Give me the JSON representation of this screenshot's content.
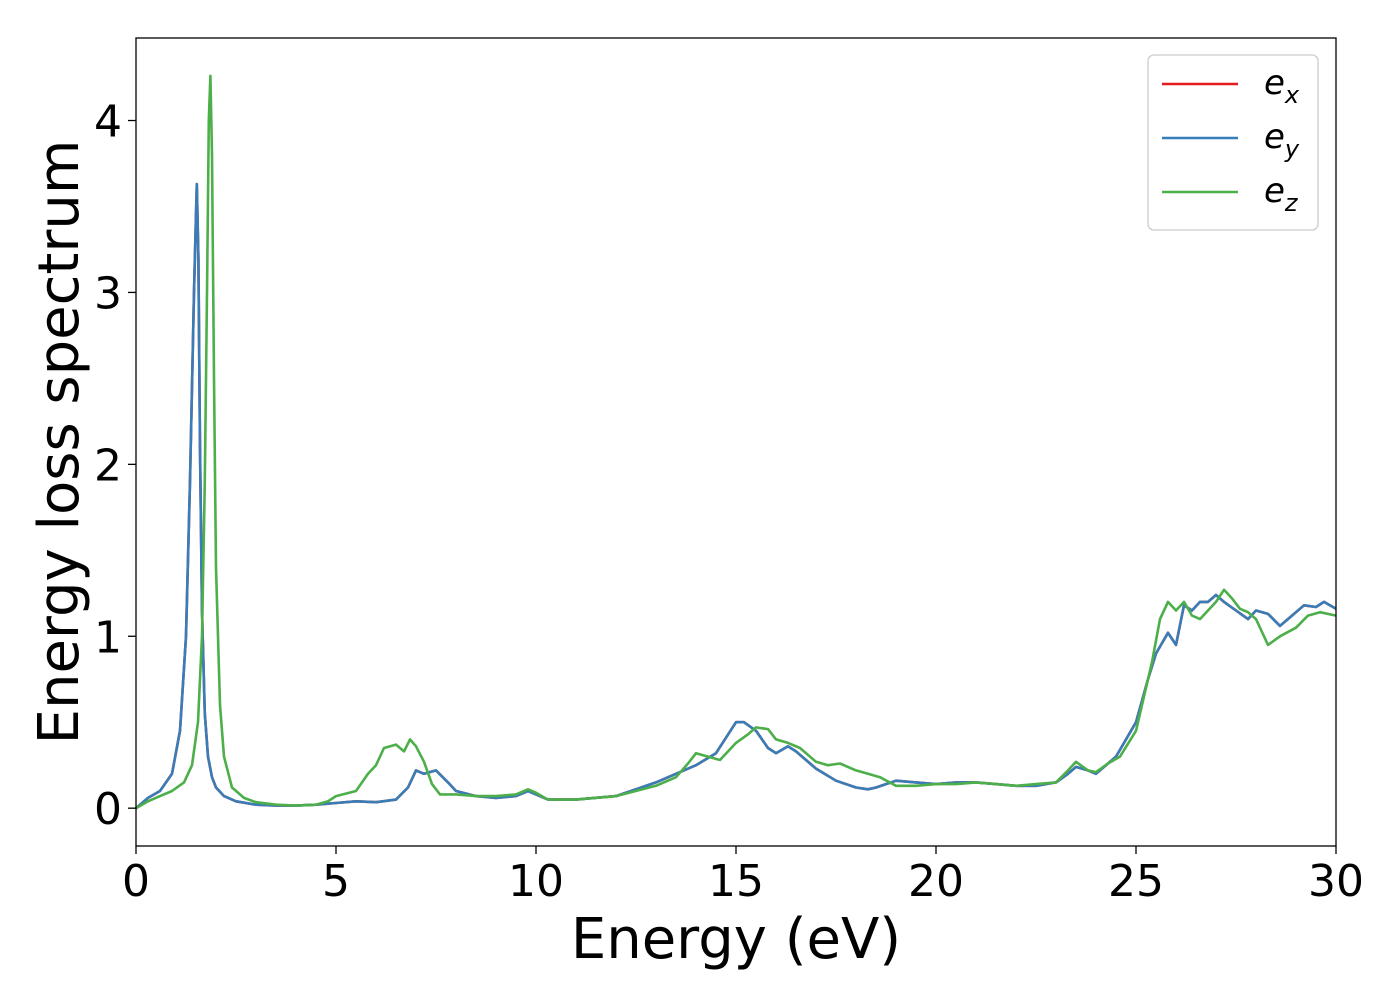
{
  "chart_data": {
    "type": "line",
    "xlabel": "Energy (eV)",
    "ylabel": "Energy loss spectrum",
    "xlim": [
      0,
      30
    ],
    "ylim": [
      -0.22,
      4.48
    ],
    "xticks": [
      0,
      5,
      10,
      15,
      20,
      25,
      30
    ],
    "yticks": [
      0,
      1,
      2,
      3,
      4
    ],
    "grid": false,
    "legend_position": "top-right",
    "series": [
      {
        "name": "e_x",
        "legend_base": "e",
        "legend_sub": "x",
        "color": "#e41a1c",
        "x": [
          0,
          0.3,
          0.6,
          0.9,
          1.1,
          1.25,
          1.35,
          1.45,
          1.52,
          1.56,
          1.6,
          1.65,
          1.72,
          1.8,
          1.9,
          2.0,
          2.2,
          2.5,
          3.0,
          3.5,
          4.0,
          4.5,
          5.0,
          5.5,
          6.0,
          6.5,
          6.8,
          7.0,
          7.2,
          7.5,
          7.8,
          8.0,
          8.5,
          9.0,
          9.5,
          9.8,
          10.0,
          10.3,
          11.0,
          12.0,
          13.0,
          13.5,
          14.0,
          14.5,
          15.0,
          15.2,
          15.5,
          15.8,
          16.0,
          16.3,
          16.5,
          17.0,
          17.5,
          18.0,
          18.3,
          18.5,
          19.0,
          19.5,
          20.0,
          20.5,
          21.0,
          21.5,
          22.0,
          22.5,
          23.0,
          23.3,
          23.5,
          23.8,
          24.0,
          24.3,
          24.5,
          24.8,
          25.0,
          25.3,
          25.5,
          25.8,
          26.0,
          26.2,
          26.4,
          26.6,
          26.8,
          27.0,
          27.2,
          27.5,
          27.8,
          28.0,
          28.3,
          28.6,
          28.9,
          29.2,
          29.5,
          29.7,
          30.0
        ],
        "values": [
          0.0,
          0.06,
          0.1,
          0.2,
          0.45,
          1.0,
          1.9,
          3.0,
          3.63,
          3.2,
          2.1,
          1.15,
          0.55,
          0.3,
          0.18,
          0.12,
          0.07,
          0.04,
          0.02,
          0.015,
          0.015,
          0.02,
          0.03,
          0.04,
          0.035,
          0.05,
          0.12,
          0.22,
          0.2,
          0.22,
          0.15,
          0.1,
          0.07,
          0.06,
          0.07,
          0.1,
          0.08,
          0.05,
          0.05,
          0.07,
          0.15,
          0.2,
          0.25,
          0.32,
          0.5,
          0.5,
          0.45,
          0.35,
          0.32,
          0.36,
          0.33,
          0.23,
          0.16,
          0.12,
          0.11,
          0.12,
          0.16,
          0.15,
          0.14,
          0.15,
          0.15,
          0.14,
          0.13,
          0.13,
          0.15,
          0.2,
          0.24,
          0.22,
          0.2,
          0.26,
          0.3,
          0.42,
          0.5,
          0.75,
          0.9,
          1.02,
          0.95,
          1.18,
          1.15,
          1.2,
          1.2,
          1.24,
          1.2,
          1.15,
          1.1,
          1.15,
          1.13,
          1.06,
          1.12,
          1.18,
          1.17,
          1.2,
          1.16
        ]
      },
      {
        "name": "e_y",
        "legend_base": "e",
        "legend_sub": "y",
        "color": "#377eb8",
        "x": [
          0,
          0.3,
          0.6,
          0.9,
          1.1,
          1.25,
          1.35,
          1.45,
          1.52,
          1.56,
          1.6,
          1.65,
          1.72,
          1.8,
          1.9,
          2.0,
          2.2,
          2.5,
          3.0,
          3.5,
          4.0,
          4.5,
          5.0,
          5.5,
          6.0,
          6.5,
          6.8,
          7.0,
          7.2,
          7.5,
          7.8,
          8.0,
          8.5,
          9.0,
          9.5,
          9.8,
          10.0,
          10.3,
          11.0,
          12.0,
          13.0,
          13.5,
          14.0,
          14.5,
          15.0,
          15.2,
          15.5,
          15.8,
          16.0,
          16.3,
          16.5,
          17.0,
          17.5,
          18.0,
          18.3,
          18.5,
          19.0,
          19.5,
          20.0,
          20.5,
          21.0,
          21.5,
          22.0,
          22.5,
          23.0,
          23.3,
          23.5,
          23.8,
          24.0,
          24.3,
          24.5,
          24.8,
          25.0,
          25.3,
          25.5,
          25.8,
          26.0,
          26.2,
          26.4,
          26.6,
          26.8,
          27.0,
          27.2,
          27.5,
          27.8,
          28.0,
          28.3,
          28.6,
          28.9,
          29.2,
          29.5,
          29.7,
          30.0
        ],
        "values": [
          0.0,
          0.06,
          0.1,
          0.2,
          0.45,
          1.0,
          1.9,
          3.0,
          3.63,
          3.2,
          2.1,
          1.15,
          0.55,
          0.3,
          0.18,
          0.12,
          0.07,
          0.04,
          0.02,
          0.015,
          0.015,
          0.02,
          0.03,
          0.04,
          0.035,
          0.05,
          0.12,
          0.22,
          0.2,
          0.22,
          0.15,
          0.1,
          0.07,
          0.06,
          0.07,
          0.1,
          0.08,
          0.05,
          0.05,
          0.07,
          0.15,
          0.2,
          0.25,
          0.32,
          0.5,
          0.5,
          0.45,
          0.35,
          0.32,
          0.36,
          0.33,
          0.23,
          0.16,
          0.12,
          0.11,
          0.12,
          0.16,
          0.15,
          0.14,
          0.15,
          0.15,
          0.14,
          0.13,
          0.13,
          0.15,
          0.2,
          0.24,
          0.22,
          0.2,
          0.26,
          0.3,
          0.42,
          0.5,
          0.75,
          0.9,
          1.02,
          0.95,
          1.18,
          1.15,
          1.2,
          1.2,
          1.24,
          1.2,
          1.15,
          1.1,
          1.15,
          1.13,
          1.06,
          1.12,
          1.18,
          1.17,
          1.2,
          1.16
        ]
      },
      {
        "name": "e_z",
        "legend_base": "e",
        "legend_sub": "z",
        "color": "#4daf4a",
        "x": [
          0,
          0.3,
          0.6,
          0.9,
          1.2,
          1.4,
          1.55,
          1.65,
          1.72,
          1.78,
          1.82,
          1.86,
          1.9,
          1.95,
          2.0,
          2.1,
          2.2,
          2.4,
          2.7,
          3.0,
          3.5,
          4.0,
          4.5,
          4.8,
          5.0,
          5.5,
          5.8,
          6.0,
          6.2,
          6.5,
          6.7,
          6.85,
          7.0,
          7.2,
          7.4,
          7.6,
          8.0,
          8.5,
          9.0,
          9.5,
          9.8,
          10.0,
          10.3,
          11.0,
          12.0,
          13.0,
          13.5,
          13.8,
          14.0,
          14.3,
          14.6,
          15.0,
          15.3,
          15.5,
          15.8,
          16.0,
          16.3,
          16.6,
          17.0,
          17.3,
          17.6,
          18.0,
          18.3,
          18.6,
          19.0,
          19.5,
          20.0,
          20.5,
          21.0,
          21.5,
          22.0,
          22.5,
          23.0,
          23.3,
          23.5,
          23.8,
          24.0,
          24.3,
          24.6,
          25.0,
          25.2,
          25.4,
          25.6,
          25.8,
          26.0,
          26.2,
          26.4,
          26.6,
          26.8,
          27.0,
          27.2,
          27.4,
          27.6,
          27.8,
          28.0,
          28.3,
          28.6,
          29.0,
          29.3,
          29.6,
          30.0
        ],
        "values": [
          0.0,
          0.04,
          0.07,
          0.1,
          0.15,
          0.25,
          0.5,
          1.0,
          1.9,
          3.1,
          4.0,
          4.26,
          3.8,
          2.5,
          1.4,
          0.6,
          0.3,
          0.12,
          0.06,
          0.035,
          0.02,
          0.015,
          0.02,
          0.04,
          0.07,
          0.1,
          0.2,
          0.25,
          0.35,
          0.37,
          0.33,
          0.4,
          0.36,
          0.27,
          0.14,
          0.08,
          0.08,
          0.07,
          0.07,
          0.08,
          0.11,
          0.09,
          0.05,
          0.05,
          0.07,
          0.13,
          0.18,
          0.26,
          0.32,
          0.3,
          0.28,
          0.38,
          0.43,
          0.47,
          0.46,
          0.4,
          0.38,
          0.35,
          0.27,
          0.25,
          0.26,
          0.22,
          0.2,
          0.18,
          0.13,
          0.13,
          0.14,
          0.14,
          0.15,
          0.14,
          0.13,
          0.14,
          0.15,
          0.22,
          0.27,
          0.22,
          0.21,
          0.26,
          0.3,
          0.45,
          0.65,
          0.85,
          1.1,
          1.2,
          1.15,
          1.2,
          1.12,
          1.1,
          1.15,
          1.2,
          1.27,
          1.22,
          1.16,
          1.14,
          1.1,
          0.95,
          1.0,
          1.05,
          1.12,
          1.14,
          1.12
        ]
      }
    ]
  }
}
